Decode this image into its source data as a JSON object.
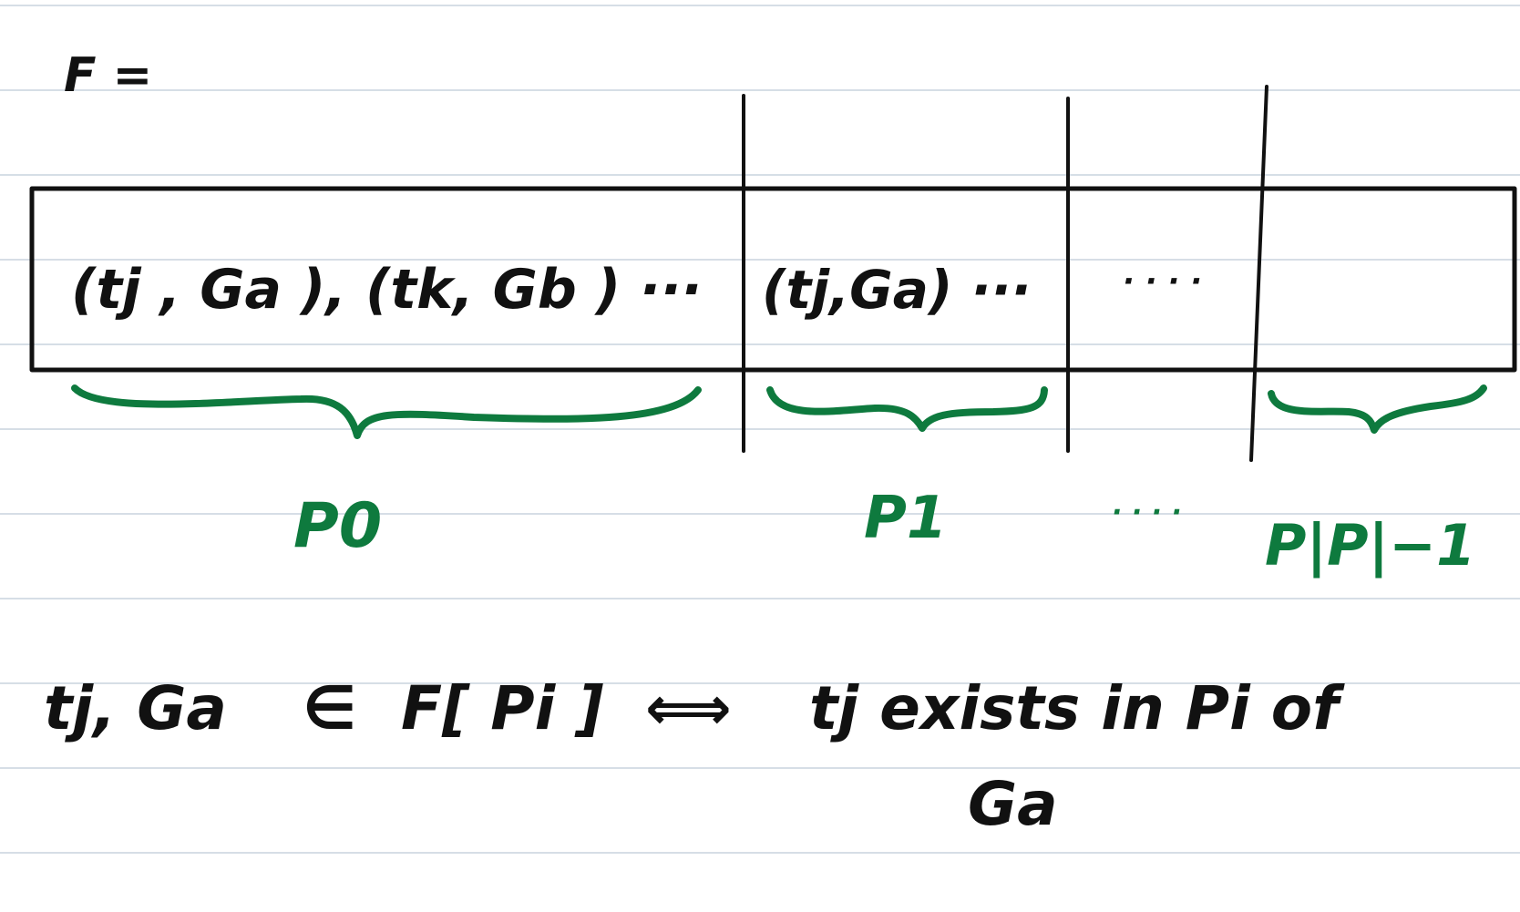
{
  "header": {
    "label": "F ="
  },
  "array": {
    "cells": [
      {
        "content": "(tj , Ga ), (tk, Gb ) ···"
      },
      {
        "content": "(tj,Ga) ···"
      },
      {
        "content": "·  · · ·"
      },
      {
        "content": ""
      }
    ]
  },
  "partitions": [
    {
      "label": "P0"
    },
    {
      "label": "P1"
    },
    {
      "label": "· · · ·"
    },
    {
      "label": "P|P|−1"
    }
  ],
  "definition": {
    "lhs": "tj, Ga",
    "member": "∈",
    "set": "F[ Pi ]",
    "iff": "⟺",
    "rhs": "tj exists in  Pi of",
    "rhs_line2": "Ga"
  },
  "colors": {
    "ink": "#111111",
    "brace": "#0e7a3e",
    "ruled_line": "#c9d3dd"
  }
}
